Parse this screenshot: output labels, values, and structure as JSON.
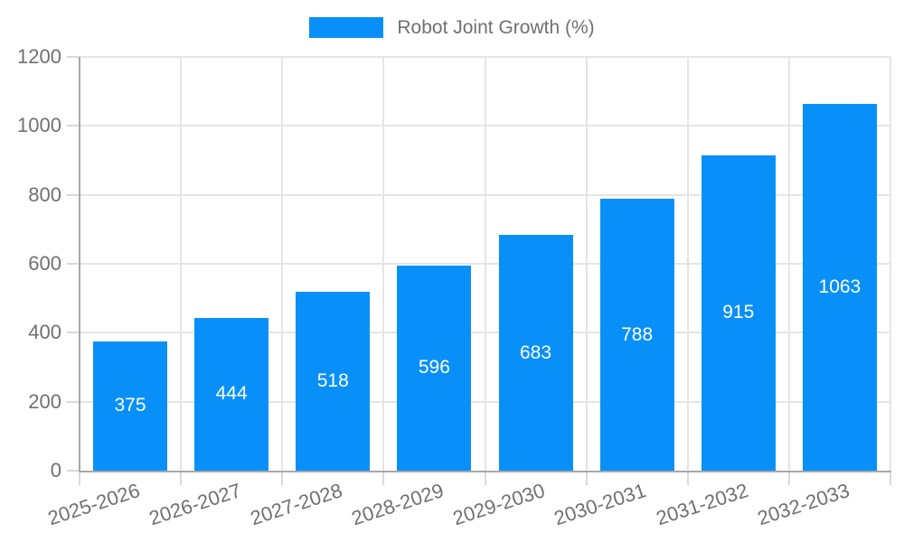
{
  "legend": {
    "swatch_color": "#0990f8"
  },
  "chart_data": {
    "type": "bar",
    "title": "Robot Joint Growth (%)",
    "categories": [
      "2025-2026",
      "2026-2027",
      "2027-2028",
      "2028-2029",
      "2029-2030",
      "2030-2031",
      "2031-2032",
      "2032-2033"
    ],
    "values": [
      375,
      444,
      518,
      596,
      683,
      788,
      915,
      1063
    ],
    "xlabel": "",
    "ylabel": "",
    "ylim": [
      0,
      1200
    ],
    "yticks": [
      0,
      200,
      400,
      600,
      800,
      1000,
      1200
    ],
    "grid": true,
    "legend_position": "top-center",
    "bar_color": "#0990f8",
    "value_label_color": "#ffffff",
    "value_label_position": "center-of-bar",
    "x_tick_label_rotation_deg": -18
  },
  "colors": {
    "background": "#ffffff",
    "grid": "#e5e5e5",
    "tick": "#d9d9d9",
    "axis": "#a8a8a8",
    "text": "#707070"
  }
}
